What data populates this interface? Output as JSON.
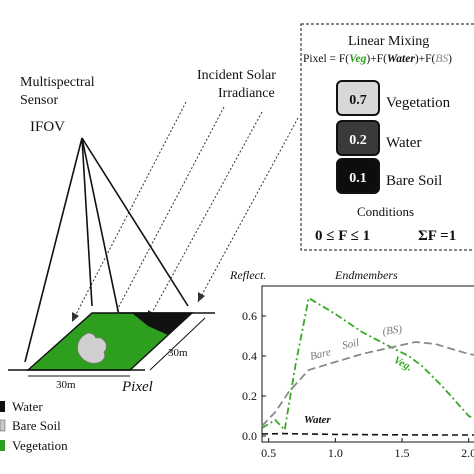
{
  "sensor": {
    "line1": "Multispectral",
    "line2": "Sensor",
    "ifov": "IFOV"
  },
  "solar": {
    "line1": "Incident Solar",
    "line2": "Irradiance"
  },
  "pixel": {
    "label": "Pixel",
    "width_label": "30m",
    "depth_label": "30m"
  },
  "legend": {
    "items": [
      {
        "label": "Water",
        "color": "#111111"
      },
      {
        "label": "Bare Soil",
        "color": "#c8c8c8"
      },
      {
        "label": "Vegetation",
        "color": "#2e9e1f"
      }
    ]
  },
  "mixing": {
    "title": "Linear Mixing",
    "eq_prefix": "Pixel = F(",
    "eq_veg": "Veg",
    "eq_mid1": ")+F(",
    "eq_water": "Water",
    "eq_mid2": ")+F(",
    "eq_bs": "BS",
    "eq_suffix": ")",
    "fractions": [
      {
        "value": "0.7",
        "label": "Vegetation",
        "fill": "#d8d8d8",
        "text_color": "#111111"
      },
      {
        "value": "0.2",
        "label": "Water",
        "fill": "#3a3a3a",
        "text_color": "#ffffff"
      },
      {
        "value": "0.1",
        "label": "Bare Soil",
        "fill": "#0d0d0d",
        "text_color": "#ffffff"
      }
    ],
    "conditions_title": "Conditions",
    "condition1": "0 ≤ F ≤ 1",
    "condition2": "ΣF =1"
  },
  "chart_data": {
    "type": "line",
    "title": "Endmembers",
    "ylabel": "Reflect.",
    "xlabel": "",
    "xlim": [
      0.45,
      2.1
    ],
    "ylim": [
      -0.03,
      0.75
    ],
    "yticks": [
      0.0,
      0.2,
      0.4,
      0.6
    ],
    "ytick_labels": [
      "0.0",
      "0.2",
      "0.4",
      "0.6"
    ],
    "xticks": [
      0.5,
      1.0,
      1.5,
      2.0
    ],
    "xtick_labels": [
      "0.5",
      "1.0",
      "1.5",
      "2.0"
    ],
    "series": [
      {
        "name": "Veg.",
        "color": "#3aa827",
        "dash": "dashdot",
        "x": [
          0.45,
          0.55,
          0.62,
          0.7,
          0.8,
          1.0,
          1.2,
          1.4,
          1.55,
          1.65,
          1.8,
          2.0,
          2.1
        ],
        "y": [
          0.04,
          0.08,
          0.03,
          0.35,
          0.69,
          0.61,
          0.52,
          0.45,
          0.4,
          0.35,
          0.25,
          0.1,
          0.07
        ]
      },
      {
        "name": "Bare Soil (BS)",
        "color": "#8a8a8a",
        "dash": "dash",
        "x": [
          0.45,
          0.55,
          0.65,
          0.8,
          1.0,
          1.2,
          1.4,
          1.6,
          1.75,
          1.9,
          2.0,
          2.1
        ],
        "y": [
          0.05,
          0.12,
          0.22,
          0.33,
          0.37,
          0.41,
          0.44,
          0.47,
          0.46,
          0.43,
          0.41,
          0.4
        ]
      },
      {
        "name": "Water",
        "color": "#111111",
        "dash": "longdash",
        "x": [
          0.45,
          0.6,
          0.8,
          1.0,
          1.4,
          1.8,
          2.1
        ],
        "y": [
          0.01,
          0.012,
          0.01,
          0.008,
          0.006,
          0.005,
          0.005
        ]
      }
    ],
    "series_labels": {
      "veg": "Veg.",
      "bare": "Bare",
      "soil": "Soil",
      "bs": "(BS)",
      "water": "Water"
    }
  }
}
